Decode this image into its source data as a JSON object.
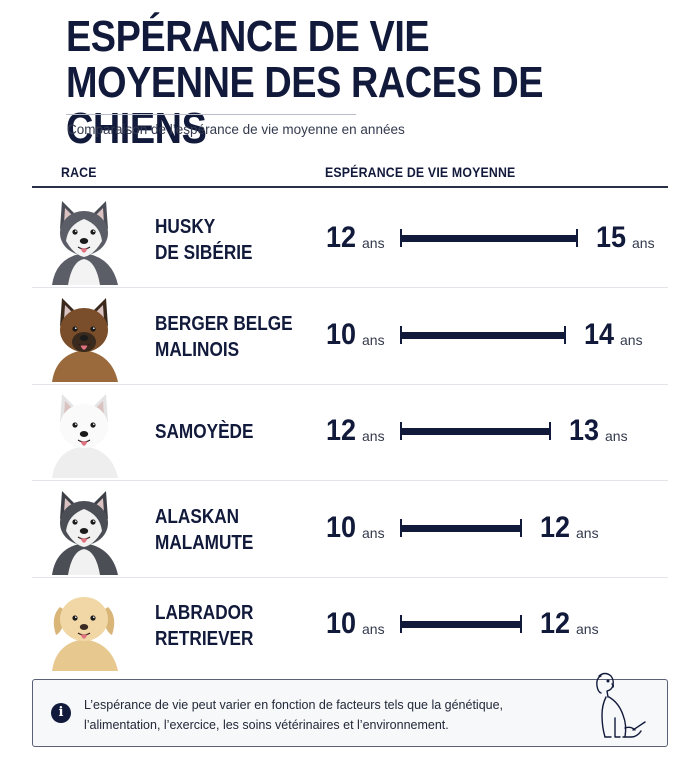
{
  "title": "ESPÉRANCE DE VIE MOYENNE DES RACES DE CHIENS",
  "subtitle": "Comparaison de l’espérance de vie moyenne en années",
  "columns": {
    "race": "RACE",
    "life": "ESPÉRANCE DE VIE MOYENNE"
  },
  "unit": "ans",
  "colors": {
    "navy": "#121a3b",
    "row_separator": "#e3e5ea"
  },
  "chart_data": {
    "type": "bar",
    "title": "ESPÉRANCE DE VIE MOYENNE DES RACES DE CHIENS",
    "subtitle": "Comparaison de l’espérance de vie moyenne en années",
    "categories": [
      "HUSKY DE SIBÉRIE",
      "BERGER BELGE MALINOIS",
      "SAMOYÈDE",
      "ALASKAN MALAMUTE",
      "LABRADOR RETRIEVER"
    ],
    "series": [
      {
        "values_min": [
          12,
          10,
          12,
          10,
          10
        ],
        "values_max": [
          15,
          14,
          13,
          12,
          12
        ]
      }
    ],
    "xlabel": "",
    "ylabel": "",
    "unit": "ans"
  },
  "rows": [
    {
      "breed_lines": [
        "HUSKY",
        "DE SIBÉRIE"
      ],
      "min": "12",
      "max": "15",
      "dog_icon": "husky-photo"
    },
    {
      "breed_lines": [
        "BERGER BELGE",
        "MALINOIS"
      ],
      "min": "10",
      "max": "14",
      "dog_icon": "malinois-photo"
    },
    {
      "breed_lines": [
        "SAMOYÈDE"
      ],
      "min": "12",
      "max": "13",
      "dog_icon": "samoyed-photo"
    },
    {
      "breed_lines": [
        "ALASKAN",
        "MALAMUTE"
      ],
      "min": "10",
      "max": "12",
      "dog_icon": "malamute-photo"
    },
    {
      "breed_lines": [
        "LABRADOR",
        "RETRIEVER"
      ],
      "min": "10",
      "max": "12",
      "dog_icon": "labrador-photo"
    }
  ],
  "note": {
    "icon": "info-icon",
    "text": "L’espérance de vie peut varier en fonction de facteurs tels que la génétique, l’alimentation, l’exercice, les soins vétérinaires et l’environnement.",
    "illustration": "sitting-dog-line-drawing"
  }
}
